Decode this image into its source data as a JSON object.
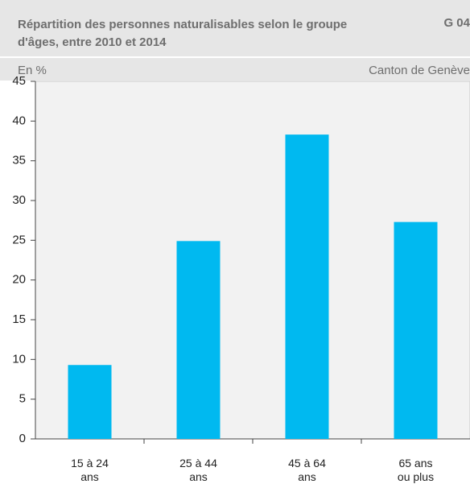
{
  "chart_data": {
    "type": "bar",
    "title": "Répartition des personnes naturalisables selon le groupe d'âges, entre 2010 et 2014",
    "chart_id": "G 04",
    "subtitle": "En %",
    "source_region": "Canton de Genève",
    "categories": [
      "15 à 24 ans",
      "25 à 44 ans",
      "45 à 64 ans",
      "65 ans ou plus"
    ],
    "values": [
      9.3,
      24.9,
      38.3,
      27.3
    ],
    "color": "#00b9f0",
    "ylim": [
      0,
      45
    ],
    "yticks": [
      0,
      5,
      10,
      15,
      20,
      25,
      30,
      35,
      40,
      45
    ],
    "grid": false
  }
}
